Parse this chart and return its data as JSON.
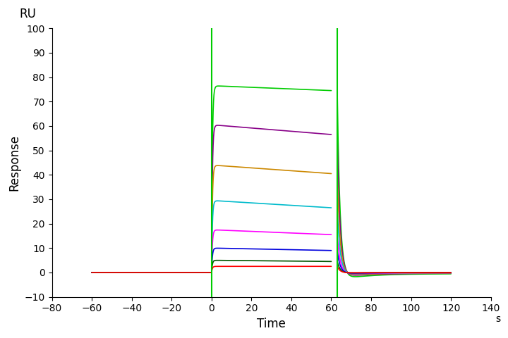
{
  "xlabel": "Time",
  "ylabel": "Response",
  "ru_label": "RU",
  "s_label": "s",
  "xlim": [
    -80,
    140
  ],
  "ylim": [
    -10,
    100
  ],
  "xticks": [
    -80,
    -60,
    -40,
    -20,
    0,
    20,
    40,
    60,
    80,
    100,
    120,
    140
  ],
  "yticks": [
    -10,
    0,
    10,
    20,
    30,
    40,
    50,
    60,
    70,
    80,
    90,
    100
  ],
  "vline1_x": 0,
  "vline2_x": 63,
  "vline_color": "#00cc00",
  "figsize": [
    7.2,
    4.8
  ],
  "dpi": 100,
  "curves": [
    {
      "color": "#00cc00",
      "assoc_y0": 76.5,
      "assoc_y1": 74.5,
      "dip": -3.0,
      "dissoc_end": -0.5
    },
    {
      "color": "#880088",
      "assoc_y0": 60.5,
      "assoc_y1": 56.5,
      "dip": -2.0,
      "dissoc_end": -0.3
    },
    {
      "color": "#cc8800",
      "assoc_y0": 44.0,
      "assoc_y1": 40.5,
      "dip": -1.5,
      "dissoc_end": -0.2
    },
    {
      "color": "#00bbcc",
      "assoc_y0": 29.5,
      "assoc_y1": 26.5,
      "dip": -1.0,
      "dissoc_end": -0.1
    },
    {
      "color": "#ff00ff",
      "assoc_y0": 17.5,
      "assoc_y1": 15.5,
      "dip": -0.8,
      "dissoc_end": -0.1
    },
    {
      "color": "#0000dd",
      "assoc_y0": 10.0,
      "assoc_y1": 9.0,
      "dip": -0.5,
      "dissoc_end": 0.0
    },
    {
      "color": "#005500",
      "assoc_y0": 5.0,
      "assoc_y1": 4.5,
      "dip": -0.3,
      "dissoc_end": 0.0
    },
    {
      "color": "#ff0000",
      "assoc_y0": 2.5,
      "assoc_y1": 2.5,
      "dip": -0.2,
      "dissoc_end": 0.0
    }
  ]
}
